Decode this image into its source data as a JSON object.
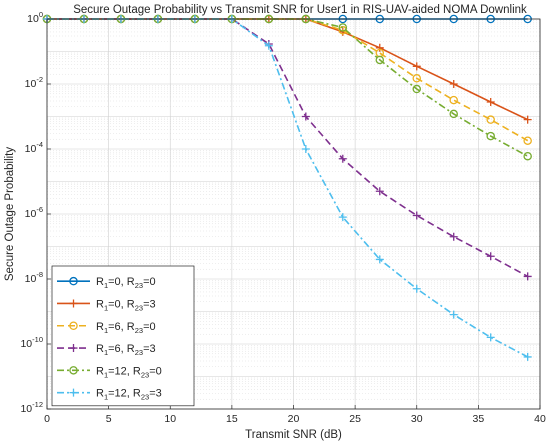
{
  "chart_data": {
    "type": "line",
    "title": "Secure Outage Probability vs Transmit SNR for User1 in RIS-UAV-aided NOMA Downlink",
    "xlabel": "Transmit SNR (dB)",
    "ylabel": "Secure Outage Probability",
    "xlim": [
      0,
      40
    ],
    "ylim": [
      1e-12,
      1
    ],
    "yscale": "log",
    "grid": true,
    "legend_position": "bottom-left",
    "x_ticks": [
      0,
      5,
      10,
      15,
      20,
      25,
      30,
      35,
      40
    ],
    "y_ticks": [
      {
        "base": "10",
        "exp": "0",
        "value": 1
      },
      {
        "base": "10",
        "exp": "-2",
        "value": 0.01
      },
      {
        "base": "10",
        "exp": "-4",
        "value": 0.0001
      },
      {
        "base": "10",
        "exp": "-6",
        "value": 1e-06
      },
      {
        "base": "10",
        "exp": "-8",
        "value": 1e-08
      },
      {
        "base": "10",
        "exp": "-10",
        "value": 1e-10
      },
      {
        "base": "10",
        "exp": "-12",
        "value": 1e-12
      }
    ],
    "series": [
      {
        "name": "R1=0, R23=0",
        "label_parts": {
          "a": "R",
          "a_sub": "1",
          "a_val": "=0, ",
          "b": "R",
          "b_sub": "23",
          "b_val": "=0"
        },
        "color": "#0072BD",
        "dash": "solid",
        "marker": "circle",
        "x": [
          0,
          3,
          6,
          9,
          12,
          15,
          18,
          21,
          24,
          27,
          30,
          33,
          36,
          39
        ],
        "y": [
          1,
          1,
          1,
          1,
          1,
          1,
          1,
          1,
          1,
          1,
          1,
          1,
          1,
          1
        ]
      },
      {
        "name": "R1=0, R23=3",
        "label_parts": {
          "a": "R",
          "a_sub": "1",
          "a_val": "=0, ",
          "b": "R",
          "b_sub": "23",
          "b_val": "=3"
        },
        "color": "#D95319",
        "dash": "solid",
        "marker": "plus",
        "x": [
          0,
          3,
          6,
          9,
          12,
          15,
          18,
          21,
          24,
          27,
          30,
          33,
          36,
          39
        ],
        "y": [
          1,
          1,
          1,
          1,
          1,
          1,
          1,
          1,
          0.4,
          0.13,
          0.035,
          0.01,
          0.0028,
          0.0008
        ]
      },
      {
        "name": "R1=6, R23=0",
        "label_parts": {
          "a": "R",
          "a_sub": "1",
          "a_val": "=6, ",
          "b": "R",
          "b_sub": "23",
          "b_val": "=0"
        },
        "color": "#EDB120",
        "dash": "dashed",
        "marker": "circle",
        "x": [
          0,
          3,
          6,
          9,
          12,
          15,
          18,
          21,
          24,
          27,
          30,
          33,
          36,
          39
        ],
        "y": [
          1,
          1,
          1,
          1,
          1,
          1,
          1,
          1,
          0.45,
          0.09,
          0.015,
          0.0032,
          0.0008,
          0.00018
        ]
      },
      {
        "name": "R1=6, R23=3",
        "label_parts": {
          "a": "R",
          "a_sub": "1",
          "a_val": "=6, ",
          "b": "R",
          "b_sub": "23",
          "b_val": "=3"
        },
        "color": "#7E2F8E",
        "dash": "dashed",
        "marker": "plus",
        "x": [
          0,
          3,
          6,
          9,
          12,
          15,
          18,
          21,
          24,
          27,
          30,
          33,
          36,
          39
        ],
        "y": [
          1,
          1,
          1,
          1,
          1,
          1,
          0.17,
          0.001,
          5e-05,
          5e-06,
          9e-07,
          2e-07,
          5e-08,
          1.2e-08
        ]
      },
      {
        "name": "R1=12, R23=0",
        "label_parts": {
          "a": "R",
          "a_sub": "1",
          "a_val": "=12, ",
          "b": "R",
          "b_sub": "23",
          "b_val": "=0"
        },
        "color": "#77AC30",
        "dash": "dashdot",
        "marker": "circle",
        "x": [
          0,
          3,
          6,
          9,
          12,
          15,
          18,
          21,
          24,
          27,
          30,
          33,
          36,
          39
        ],
        "y": [
          1,
          1,
          1,
          1,
          1,
          1,
          1,
          1,
          0.55,
          0.055,
          0.007,
          0.0012,
          0.00025,
          6e-05
        ]
      },
      {
        "name": "R1=12, R23=3",
        "label_parts": {
          "a": "R",
          "a_sub": "1",
          "a_val": "=12, ",
          "b": "R",
          "b_sub": "23",
          "b_val": "=3"
        },
        "color": "#4DBEEE",
        "dash": "dashdot",
        "marker": "plus",
        "x": [
          0,
          3,
          6,
          9,
          12,
          15,
          18,
          21,
          24,
          27,
          30,
          33,
          36,
          39
        ],
        "y": [
          1,
          1,
          1,
          1,
          1,
          1,
          0.15,
          0.0001,
          8e-07,
          4e-08,
          5e-09,
          8e-10,
          1.6e-10,
          4e-11
        ]
      }
    ]
  }
}
